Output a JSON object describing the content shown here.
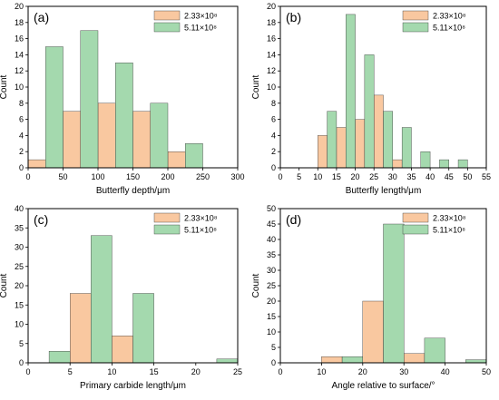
{
  "colors": {
    "series_a": "#f9c8a0",
    "series_b": "#a4d9ae",
    "edge": "#333333"
  },
  "legend_labels": [
    "2.33×10⁸",
    "5.11×10⁸"
  ],
  "chart_data": [
    {
      "panel": "(a)",
      "type": "bar",
      "title": "",
      "xlabel": "Butterfly depth/μm",
      "ylabel": "Count",
      "xlim": [
        0,
        300
      ],
      "ylim": [
        0,
        20
      ],
      "xticks": [
        0,
        50,
        100,
        150,
        200,
        250,
        300
      ],
      "yticks": [
        0,
        2,
        4,
        6,
        8,
        10,
        12,
        14,
        16,
        18,
        20
      ],
      "legend": "top-right",
      "series": [
        {
          "name": "2.33×10⁸",
          "values": [
            1,
            7,
            8,
            7,
            2
          ],
          "bins": [
            [
              0,
              25
            ],
            [
              50,
              75
            ],
            [
              100,
              125
            ],
            [
              150,
              175
            ],
            [
              200,
              225
            ]
          ]
        },
        {
          "name": "5.11×10⁸",
          "values": [
            15,
            17,
            13,
            8,
            3
          ],
          "bins": [
            [
              25,
              50
            ],
            [
              75,
              100
            ],
            [
              125,
              150
            ],
            [
              175,
              200
            ],
            [
              225,
              250
            ]
          ]
        }
      ]
    },
    {
      "panel": "(b)",
      "type": "bar",
      "title": "",
      "xlabel": "Butterfly length/μm",
      "ylabel": "Count",
      "xlim": [
        0,
        55
      ],
      "ylim": [
        0,
        20
      ],
      "xticks": [
        0,
        5,
        10,
        15,
        20,
        25,
        30,
        35,
        40,
        45,
        50,
        55
      ],
      "yticks": [
        0,
        2,
        4,
        6,
        8,
        10,
        12,
        14,
        16,
        18,
        20
      ],
      "legend": "top-right",
      "series": [
        {
          "name": "2.33×10⁸",
          "values": [
            4,
            5,
            6,
            9,
            1
          ],
          "bins": [
            [
              10,
              12.5
            ],
            [
              15,
              17.5
            ],
            [
              20,
              22.5
            ],
            [
              25,
              27.5
            ],
            [
              30,
              32.5
            ]
          ]
        },
        {
          "name": "5.11×10⁸",
          "values": [
            7,
            19,
            14,
            7,
            5,
            2,
            1,
            1
          ],
          "bins": [
            [
              12.5,
              15
            ],
            [
              17.5,
              20
            ],
            [
              22.5,
              25
            ],
            [
              27.5,
              30
            ],
            [
              32.5,
              35
            ],
            [
              37.5,
              40
            ],
            [
              42.5,
              45
            ],
            [
              47.5,
              50
            ]
          ]
        }
      ]
    },
    {
      "panel": "(c)",
      "type": "bar",
      "title": "",
      "xlabel": "Primary carbide length/μm",
      "ylabel": "Count",
      "xlim": [
        0,
        25
      ],
      "ylim": [
        0,
        40
      ],
      "xticks": [
        0,
        5,
        10,
        15,
        20,
        25
      ],
      "yticks": [
        0,
        5,
        10,
        15,
        20,
        25,
        30,
        35,
        40
      ],
      "legend": "top-right",
      "series": [
        {
          "name": "2.33×10⁸",
          "values": [
            18,
            7
          ],
          "bins": [
            [
              5,
              7.5
            ],
            [
              10,
              12.5
            ]
          ]
        },
        {
          "name": "5.11×10⁸",
          "values": [
            3,
            33,
            18,
            1
          ],
          "bins": [
            [
              2.5,
              5
            ],
            [
              7.5,
              10
            ],
            [
              12.5,
              15
            ],
            [
              22.5,
              25
            ]
          ]
        }
      ]
    },
    {
      "panel": "(d)",
      "type": "bar",
      "title": "",
      "xlabel": "Angle relative to surface/°",
      "ylabel": "Count",
      "xlim": [
        0,
        50
      ],
      "ylim": [
        0,
        50
      ],
      "xticks": [
        0,
        10,
        20,
        30,
        40,
        50
      ],
      "yticks": [
        0,
        5,
        10,
        15,
        20,
        25,
        30,
        35,
        40,
        45,
        50
      ],
      "legend": "top-right",
      "series": [
        {
          "name": "2.33×10⁸",
          "values": [
            2,
            20,
            3
          ],
          "bins": [
            [
              10,
              15
            ],
            [
              20,
              25
            ],
            [
              30,
              35
            ]
          ]
        },
        {
          "name": "5.11×10⁸",
          "values": [
            2,
            45,
            8,
            1
          ],
          "bins": [
            [
              15,
              20
            ],
            [
              25,
              30
            ],
            [
              35,
              40
            ],
            [
              45,
              50
            ]
          ]
        }
      ]
    }
  ]
}
